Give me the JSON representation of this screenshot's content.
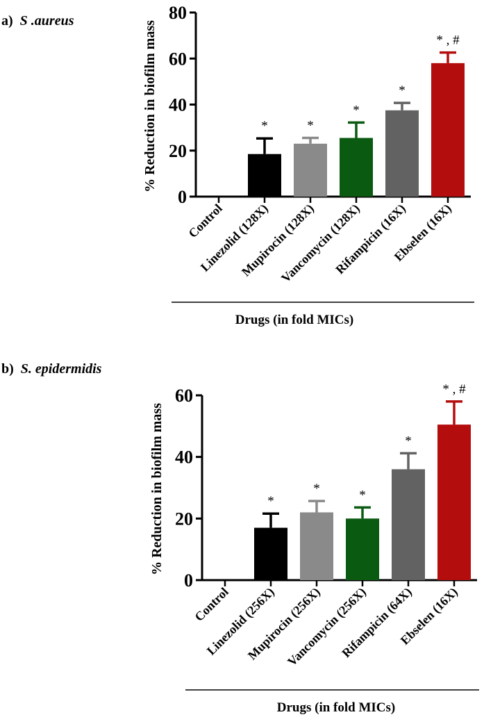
{
  "chart_data": [
    {
      "type": "bar",
      "panel_label": "a)",
      "title": "S .aureus",
      "ylabel": "% Reduction  in biofilm mass",
      "xlabel": "Drugs (in fold MICs)",
      "ylim": [
        0,
        80
      ],
      "yticks": [
        0,
        20,
        40,
        60,
        80
      ],
      "categories": [
        "Control",
        "Linezolid (128X)",
        "Mupirocin (128X)",
        "Vancomycin (128X)",
        "Rifampicin (16X)",
        "Ebselen (16X)"
      ],
      "values": [
        0,
        18.5,
        23,
        25.5,
        37.5,
        58
      ],
      "errors": [
        0,
        6.8,
        2.5,
        6.7,
        3.2,
        4.6
      ],
      "colors": [
        "#000000",
        "#000000",
        "#8a8a8a",
        "#0b5a12",
        "#626262",
        "#b40d0d"
      ],
      "annotations": [
        "",
        "*",
        "*",
        "*",
        "*",
        "* , #"
      ]
    },
    {
      "type": "bar",
      "panel_label": "b)",
      "title": "S. epidermidis",
      "ylabel": "% Reduction  in biofilm mass",
      "xlabel": "Drugs (in fold MICs)",
      "ylim": [
        0,
        60
      ],
      "yticks": [
        0,
        20,
        40,
        60
      ],
      "categories": [
        "Control",
        "Linezolid (256X)",
        "Mupirocin (256X)",
        "Vancomycin (256X)",
        "Rifampicin (64X)",
        "Ebselen (16X)"
      ],
      "values": [
        0,
        17,
        22,
        20,
        36,
        50.5
      ],
      "errors": [
        0,
        4.6,
        3.7,
        3.6,
        5.2,
        7.5
      ],
      "colors": [
        "#000000",
        "#000000",
        "#8a8a8a",
        "#0b5a12",
        "#626262",
        "#b40d0d"
      ],
      "annotations": [
        "",
        "*",
        "*",
        "*",
        "*",
        "* , #"
      ]
    }
  ]
}
